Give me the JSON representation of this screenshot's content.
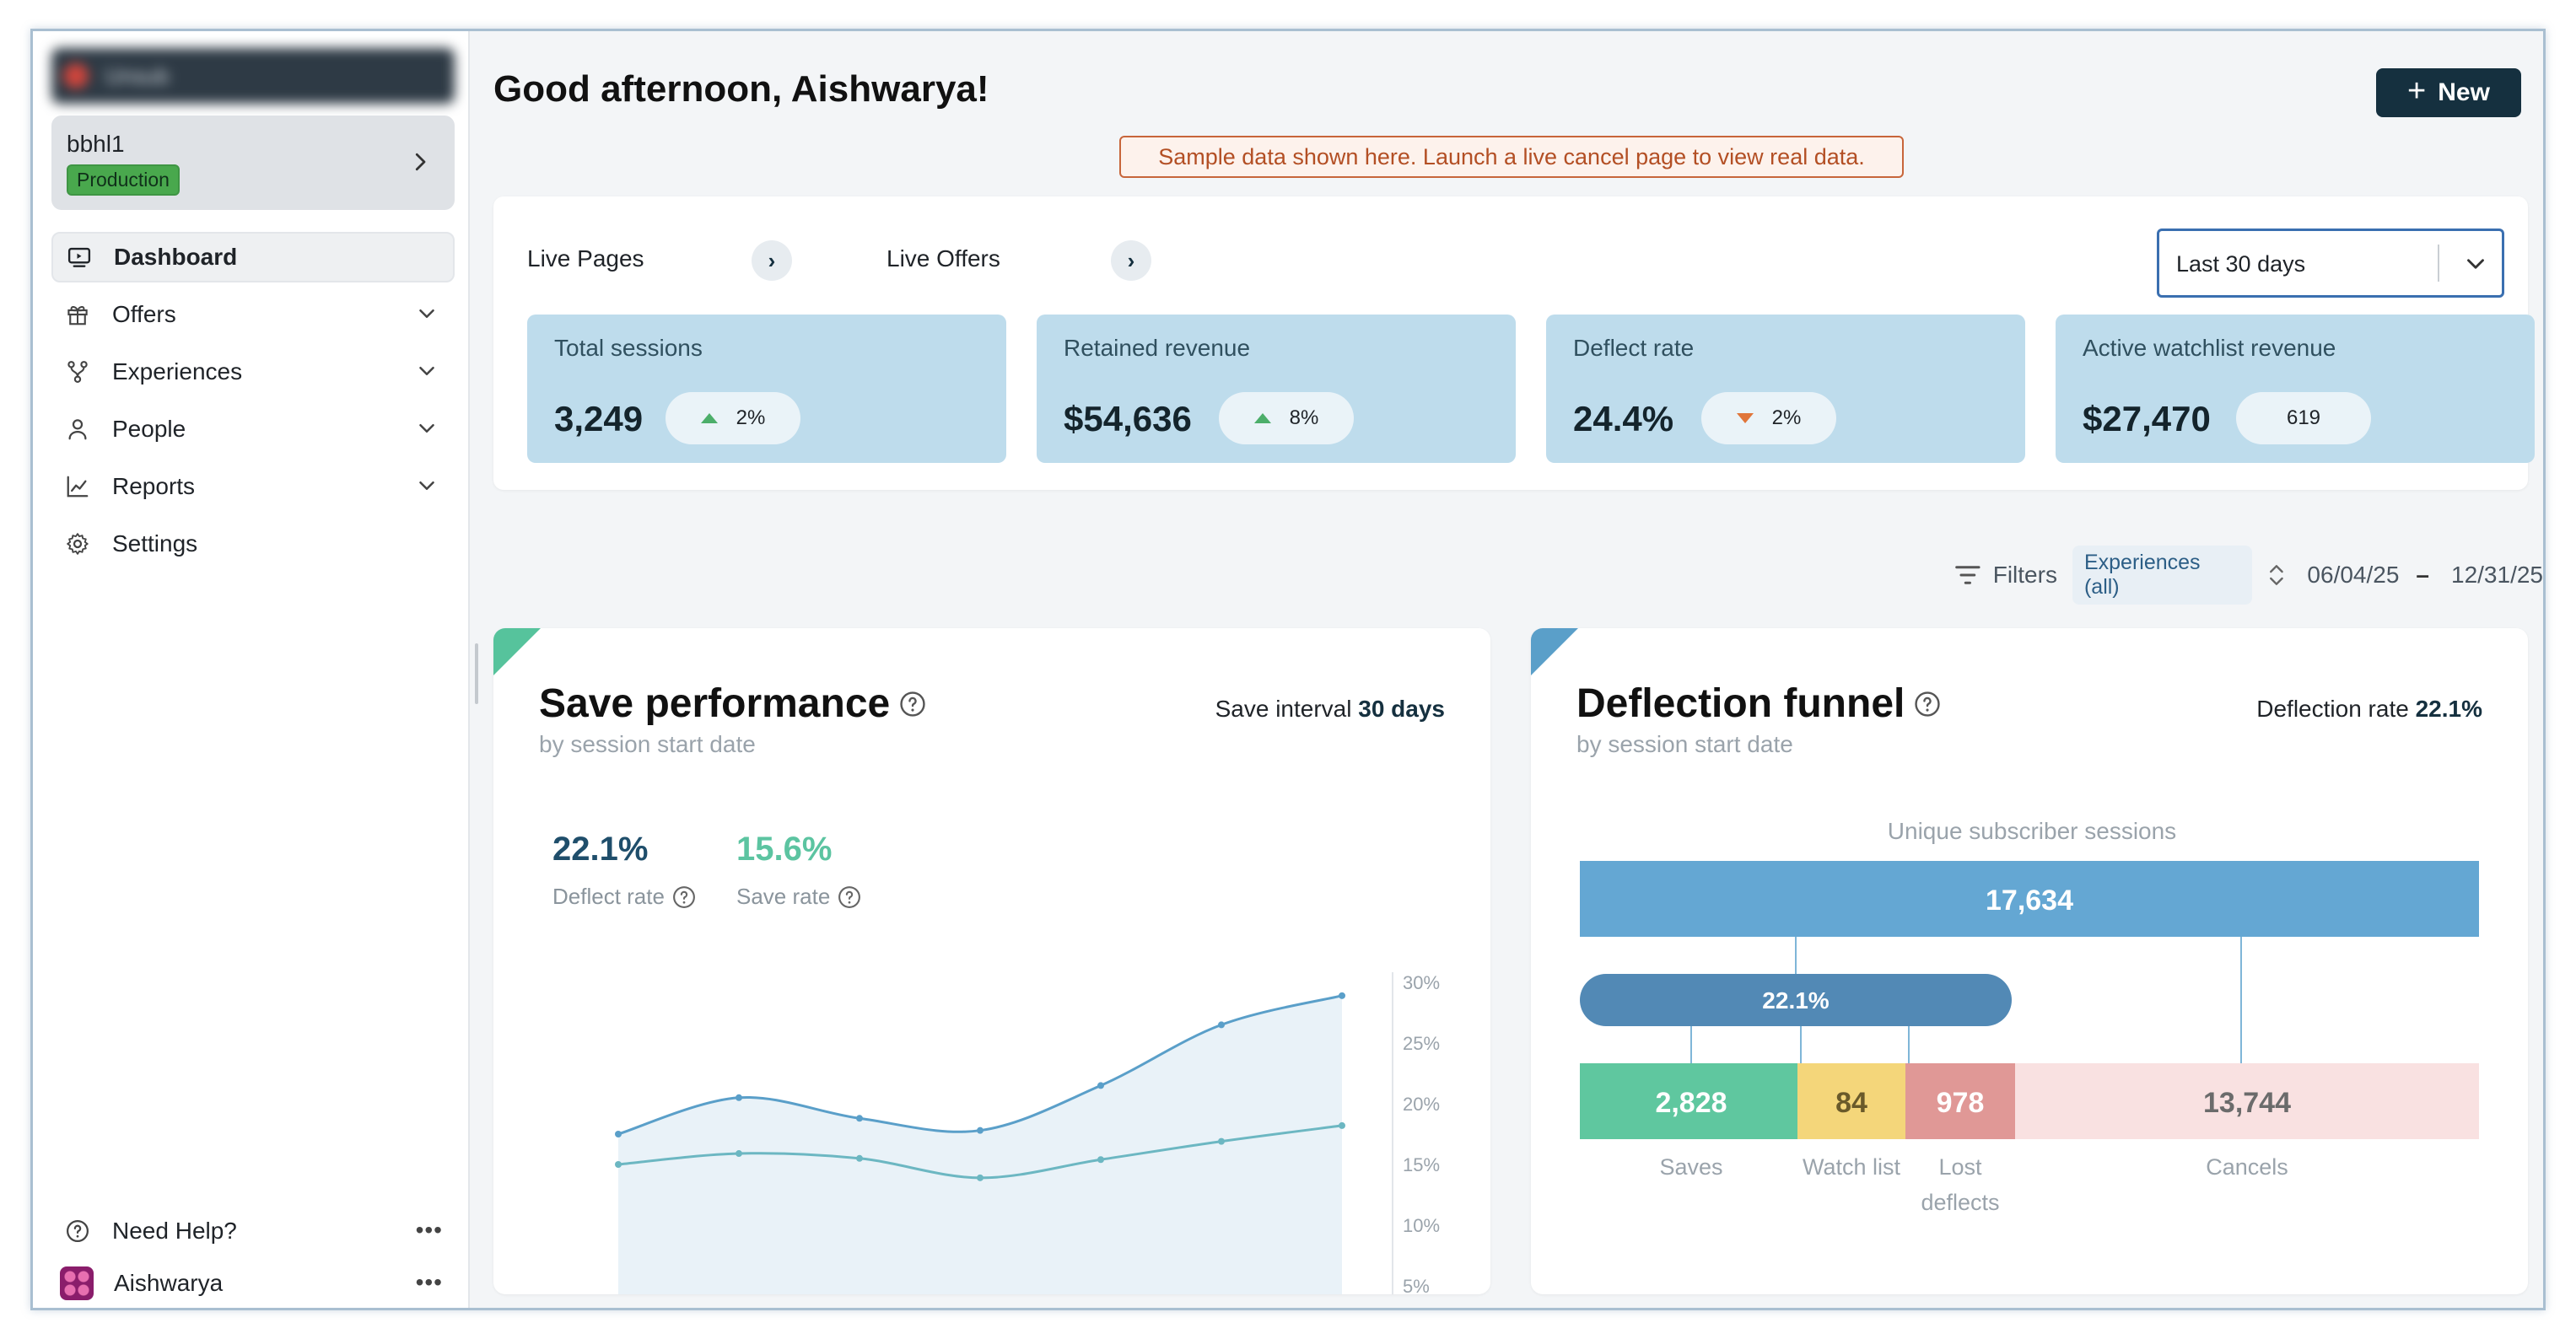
{
  "sidebar": {
    "org_name": "Unsub",
    "workspace": {
      "name": "bbhl1",
      "badge": "Production"
    },
    "nav": [
      {
        "label": "Dashboard",
        "icon": "dashboard-icon",
        "active": true
      },
      {
        "label": "Offers",
        "icon": "gift-icon"
      },
      {
        "label": "Experiences",
        "icon": "flow-icon"
      },
      {
        "label": "People",
        "icon": "person-icon"
      },
      {
        "label": "Reports",
        "icon": "chart-icon"
      },
      {
        "label": "Settings",
        "icon": "gear-icon"
      }
    ],
    "help_label": "Need Help?",
    "user_name": "Aishwarya"
  },
  "header": {
    "greeting": "Good afternoon, Aishwarya!",
    "new_button": "New",
    "banner": "Sample data shown here. Launch a live cancel page to view real data."
  },
  "stats": {
    "live_pages": "Live Pages",
    "live_offers": "Live Offers",
    "range": "Last 30 days",
    "kpis": [
      {
        "label": "Total sessions",
        "value": "3,249",
        "change": "2%",
        "direction": "up"
      },
      {
        "label": "Retained revenue",
        "value": "$54,636",
        "change": "8%",
        "direction": "up"
      },
      {
        "label": "Deflect rate",
        "value": "24.4%",
        "change": "2%",
        "direction": "down"
      },
      {
        "label": "Active watchlist revenue",
        "value": "$27,470",
        "change": "619",
        "direction": "none"
      }
    ]
  },
  "filters": {
    "label": "Filters",
    "chip": "Experiences (all)",
    "start": "06/04/25",
    "end": "12/31/25"
  },
  "save_performance": {
    "title": "Save performance",
    "subtitle": "by session start date",
    "interval_label": "Save interval",
    "interval_value": "30 days",
    "deflect_value": "22.1%",
    "deflect_label": "Deflect rate",
    "save_value": "15.6%",
    "save_label": "Save rate"
  },
  "deflection_funnel": {
    "title": "Deflection funnel",
    "subtitle": "by session start date",
    "rate_label": "Deflection rate",
    "rate_value": "22.1%",
    "header": "Unique subscriber sessions",
    "total": "17,634",
    "pill": "22.1%",
    "segments": [
      {
        "value": "2,828",
        "label": "Saves",
        "color": "#5fc79f"
      },
      {
        "value": "84",
        "label": "Watch list",
        "color": "#f4d67a"
      },
      {
        "value": "978",
        "label": "Lost deflects",
        "color": "#e09896"
      },
      {
        "value": "13,744",
        "label": "Cancels",
        "color": "#f9e1e1"
      }
    ]
  },
  "chart_data": {
    "type": "area",
    "y_ticks": [
      "30%",
      "25%",
      "20%",
      "15%",
      "10%",
      "5%"
    ],
    "ylim": [
      0,
      30
    ],
    "series": [
      {
        "name": "Deflect rate",
        "color": "#5a9fc9",
        "values": [
          17.5,
          20.5,
          18.8,
          17.8,
          21.5,
          26.5,
          28.9
        ]
      },
      {
        "name": "Save rate",
        "color": "#6cb7c2",
        "values": [
          15.0,
          15.9,
          15.5,
          13.9,
          15.4,
          16.9,
          18.2
        ]
      }
    ]
  }
}
